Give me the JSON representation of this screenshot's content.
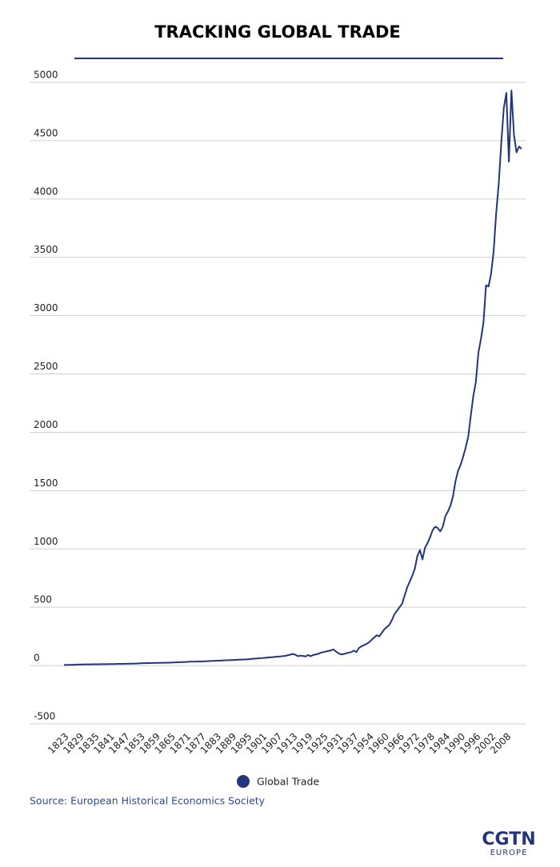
{
  "chart_data": {
    "type": "line",
    "title": "TRACKING GLOBAL TRADE",
    "categories": [
      "1823",
      null,
      null,
      null,
      null,
      null,
      "1829",
      null,
      null,
      null,
      null,
      null,
      "1835",
      null,
      null,
      null,
      null,
      null,
      "1841",
      null,
      null,
      null,
      null,
      null,
      "1847",
      null,
      null,
      null,
      null,
      null,
      "1853",
      null,
      null,
      null,
      null,
      null,
      "1859",
      null,
      null,
      null,
      null,
      null,
      "1865",
      null,
      null,
      null,
      null,
      null,
      "1871",
      null,
      null,
      null,
      null,
      null,
      "1877",
      null,
      null,
      null,
      null,
      null,
      "1883",
      null,
      null,
      null,
      null,
      null,
      "1889",
      null,
      null,
      null,
      null,
      null,
      "1895",
      null,
      null,
      null,
      null,
      null,
      "1901",
      null,
      null,
      null,
      null,
      null,
      "1907",
      null,
      null,
      null,
      null,
      null,
      "1913",
      null,
      null,
      null,
      null,
      null,
      "1919",
      null,
      null,
      null,
      null,
      null,
      "1925",
      null,
      null,
      null,
      null,
      null,
      "1931",
      null,
      null,
      null,
      null,
      null,
      "1937",
      null,
      null,
      null,
      null,
      null,
      "1954",
      null,
      null,
      null,
      null,
      null,
      "1960",
      null,
      null,
      null,
      null,
      null,
      "1966",
      null,
      null,
      null,
      null,
      null,
      "1972",
      null,
      null,
      null,
      null,
      null,
      "1978",
      null,
      null,
      null,
      null,
      null,
      "1984",
      null,
      null,
      null,
      null,
      null,
      "1990",
      null,
      null,
      null,
      null,
      null,
      "1996",
      null,
      null,
      null,
      null,
      null,
      "2002",
      null,
      null,
      null,
      null,
      null,
      "2008",
      null,
      null,
      null,
      null,
      null,
      null
    ],
    "series": [
      {
        "name": "Global Trade",
        "color": "#24357a",
        "values": [
          5,
          5,
          6,
          6,
          7,
          8,
          8,
          9,
          9,
          10,
          10,
          10,
          11,
          11,
          11,
          12,
          12,
          12,
          13,
          13,
          13,
          14,
          14,
          14,
          15,
          15,
          16,
          16,
          17,
          18,
          19,
          20,
          20,
          21,
          21,
          22,
          22,
          23,
          23,
          24,
          24,
          25,
          25,
          26,
          27,
          28,
          29,
          30,
          31,
          32,
          33,
          33,
          34,
          34,
          35,
          36,
          37,
          38,
          39,
          40,
          41,
          42,
          43,
          44,
          45,
          46,
          47,
          48,
          49,
          50,
          51,
          52,
          53,
          55,
          57,
          59,
          61,
          63,
          64,
          66,
          68,
          70,
          72,
          74,
          76,
          78,
          80,
          83,
          88,
          93,
          100,
          92,
          80,
          85,
          82,
          78,
          90,
          80,
          90,
          95,
          100,
          110,
          115,
          120,
          125,
          130,
          138,
          120,
          105,
          95,
          98,
          105,
          110,
          115,
          128,
          115,
          150,
          165,
          175,
          185,
          200,
          220,
          240,
          260,
          250,
          280,
          310,
          330,
          350,
          390,
          440,
          470,
          500,
          530,
          600,
          670,
          720,
          770,
          830,
          940,
          990,
          910,
          1010,
          1050,
          1100,
          1160,
          1190,
          1180,
          1150,
          1190,
          1280,
          1320,
          1370,
          1450,
          1580,
          1670,
          1720,
          1790,
          1870,
          1960,
          2140,
          2310,
          2430,
          2680,
          2800,
          2940,
          3260,
          3250,
          3360,
          3550,
          3880,
          4130,
          4480,
          4780,
          4910,
          4320,
          4930,
          4550,
          4400,
          4450,
          4430
        ]
      }
    ],
    "ylim": [
      -500,
      5000
    ],
    "yticks": [
      -500,
      0,
      500,
      1000,
      1500,
      2000,
      2500,
      3000,
      3500,
      4000,
      4500,
      5000
    ],
    "grid": true,
    "source": "Source: European Historical Economics Society",
    "logo": "CGTN",
    "logo_sub": "EUROPE"
  }
}
